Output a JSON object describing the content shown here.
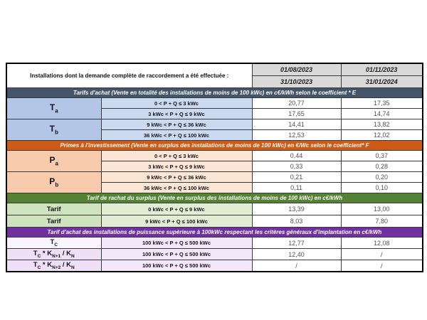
{
  "table": {
    "colors": {
      "header_bg": "#D9D9D9",
      "grid": "#3a3a3a"
    },
    "header": {
      "left_label": "Installations dont la demande complète de raccordement a été effectuée :",
      "periods": [
        {
          "start": "01/08/2023",
          "end": "31/10/2023"
        },
        {
          "start": "01/11/2023",
          "end": "31/01/2024"
        }
      ]
    },
    "sections": [
      {
        "banner": "Tarifs d'achat (Vente en totalité des installations de moins de 100 kWc) en c€/kWh selon le coefficient * E",
        "colors": {
          "banner": "#44546A",
          "label": "#B4C6E7",
          "range": "#CBD9F1"
        },
        "groups": [
          {
            "label": "T_{a}",
            "rows": [
              {
                "range": "0 < P + Q ≤ 3 kWc",
                "v1": "20,77",
                "v2": "17,35"
              },
              {
                "range": "3 kWc < P + Q ≤ 9 kWc",
                "v1": "17,65",
                "v2": "14,74"
              }
            ]
          },
          {
            "label": "T_{b}",
            "rows": [
              {
                "range": "9 kWc < P + Q ≤ 36 kWc",
                "v1": "14,41",
                "v2": "13,82"
              },
              {
                "range": "36 kWc < P + Q ≤ 100 kWc",
                "v1": "12,53",
                "v2": "12,02"
              }
            ]
          }
        ]
      },
      {
        "banner": "Primes à l'investissement (Vente en surplus des installations de moins de 100 kWc) en €/Wc selon le coefficient* F",
        "colors": {
          "banner": "#CE5A16",
          "label": "#F8CBAD",
          "range": "#FBE5D5"
        },
        "groups": [
          {
            "label": "P_{a}",
            "rows": [
              {
                "range": "0 < P + Q ≤ 3 kWc",
                "v1": "0,44",
                "v2": "0,37"
              },
              {
                "range": "3 kWc < P + Q ≤ 9 kWc",
                "v1": "0,33",
                "v2": "0,28"
              }
            ]
          },
          {
            "label": "P_{b}",
            "rows": [
              {
                "range": "9 kWc < P + Q ≤ 36 kWc",
                "v1": "0,21",
                "v2": "0,20"
              },
              {
                "range": "36 kWc < P + Q ≤ 100 kWc",
                "v1": "0,11",
                "v2": "0,10"
              }
            ]
          }
        ]
      },
      {
        "banner": "Tarif de rachat du surplus (Vente en surplus des installations de moins de 100 kWc) en c€/kWh",
        "colors": {
          "banner": "#548235",
          "label": "#CFE3BF",
          "range": "#E1EDD5"
        },
        "groups": [
          {
            "label": "Tarif",
            "rows": [
              {
                "range": "0 kWc < P + Q ≤ 9 kWc",
                "v1": "13,39",
                "v2": "13,00"
              }
            ]
          },
          {
            "label": "Tarif",
            "rows": [
              {
                "range": "9 kWc < P + Q ≤ 100 kWc",
                "v1": "8,03",
                "v2": "7,80"
              }
            ]
          }
        ]
      },
      {
        "banner": "Tarif d'achat des installations de puissance supérieure à 100kWc respectant les critères généraux d'implantation en c€/kWh",
        "colors": {
          "banner": "#7030A0",
          "label": "#EFDFF7",
          "label_light": "#FAF5FC",
          "range": "#F3E7FA"
        },
        "groups": [
          {
            "label": "T_{C}",
            "rows": [
              {
                "range": "100 kWc < P + Q ≤ 500 kWc",
                "v1": "12,77",
                "v2": "12,08"
              }
            ]
          },
          {
            "label": "T_{C} * K_{N+1} / K_{N}",
            "rows": [
              {
                "range": "100 kWc < P + Q ≤ 500 kWc",
                "v1": "12,40",
                "v2": "/"
              }
            ]
          },
          {
            "label": "T_{C} * K_{N+2} / K_{N}",
            "rows": [
              {
                "range": "100 kWc < P + Q ≤ 500 kWc",
                "v1": "/",
                "v2": "/"
              }
            ]
          }
        ]
      }
    ]
  }
}
